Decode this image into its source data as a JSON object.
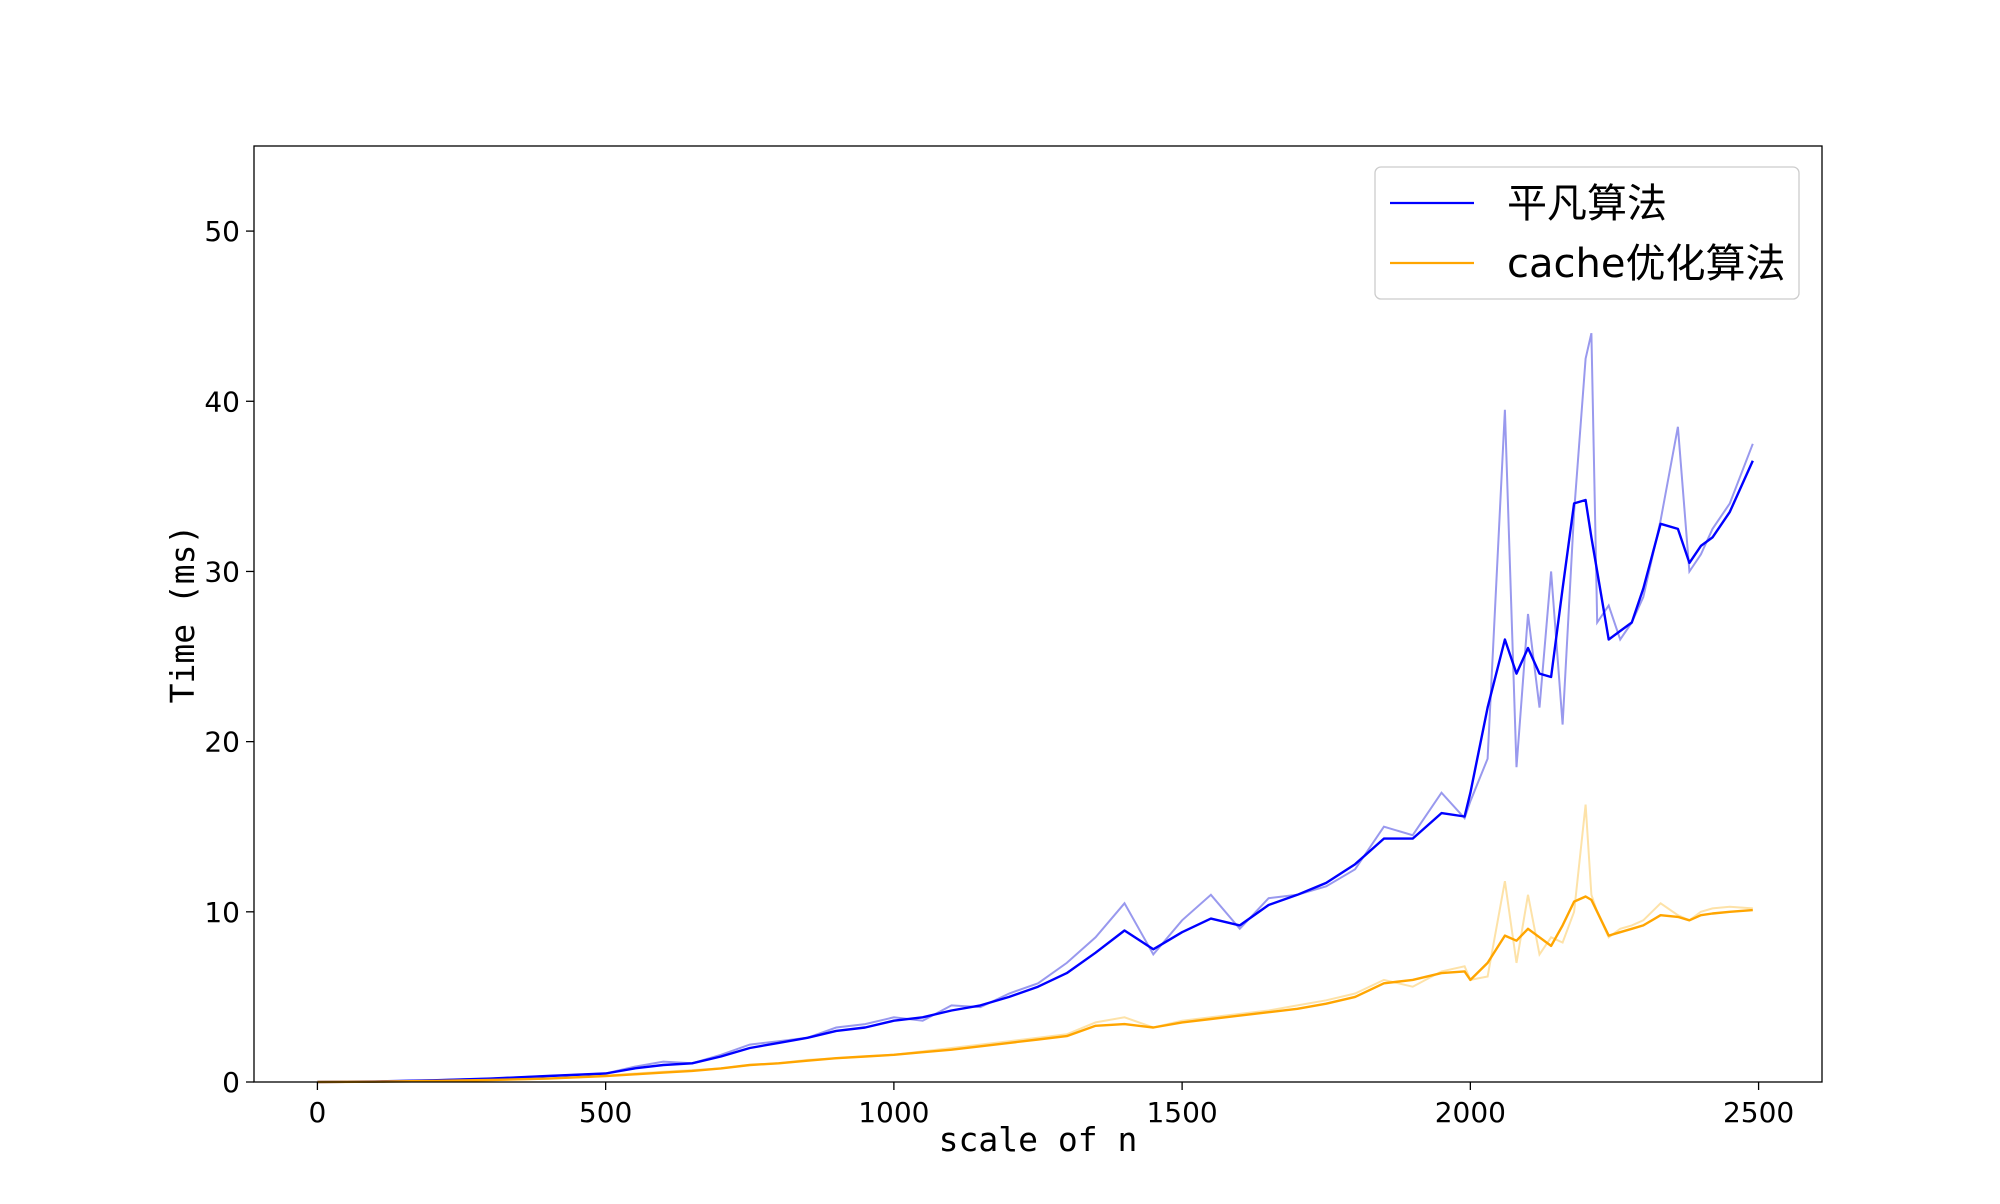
{
  "chart_data": {
    "type": "line",
    "xlabel": "scale of n",
    "ylabel": "Time (ms)",
    "xlim": [
      -110,
      2610
    ],
    "ylim": [
      0,
      55
    ],
    "xticks": [
      0,
      500,
      1000,
      1500,
      2000,
      2500
    ],
    "yticks": [
      0,
      10,
      20,
      30,
      40,
      50
    ],
    "grid": false,
    "legend_position": "top-right",
    "x": [
      0,
      100,
      200,
      300,
      400,
      500,
      550,
      600,
      650,
      700,
      750,
      800,
      850,
      900,
      950,
      1000,
      1050,
      1100,
      1150,
      1200,
      1250,
      1300,
      1350,
      1400,
      1450,
      1500,
      1550,
      1600,
      1650,
      1700,
      1750,
      1800,
      1850,
      1900,
      1950,
      1990,
      2000,
      2030,
      2060,
      2080,
      2100,
      2120,
      2140,
      2160,
      2180,
      2200,
      2210,
      2220,
      2240,
      2260,
      2280,
      2300,
      2330,
      2360,
      2380,
      2400,
      2420,
      2450,
      2490
    ],
    "series": [
      {
        "name": "平凡算法",
        "color": "#0000ff",
        "raw_color": "#9999ee",
        "smoothed": [
          0,
          0.03,
          0.1,
          0.2,
          0.35,
          0.5,
          0.8,
          1.0,
          1.1,
          1.5,
          2.0,
          2.3,
          2.6,
          3.0,
          3.2,
          3.6,
          3.8,
          4.2,
          4.5,
          5.0,
          5.6,
          6.4,
          7.6,
          8.9,
          7.8,
          8.8,
          9.6,
          9.2,
          10.4,
          11.0,
          11.7,
          12.8,
          14.3,
          14.3,
          15.8,
          15.6,
          17.0,
          22.0,
          26.0,
          24.0,
          25.5,
          24.0,
          23.8,
          29.0,
          34.0,
          34.2,
          32.0,
          30.0,
          26.0,
          26.5,
          27.0,
          29.0,
          32.8,
          32.5,
          30.5,
          31.5,
          32.0,
          33.5,
          36.5
        ],
        "raw": [
          0,
          0.03,
          0.1,
          0.2,
          0.35,
          0.5,
          0.9,
          1.2,
          1.1,
          1.6,
          2.2,
          2.4,
          2.6,
          3.2,
          3.4,
          3.8,
          3.6,
          4.5,
          4.4,
          5.2,
          5.8,
          7.0,
          8.5,
          10.5,
          7.5,
          9.5,
          11.0,
          9.0,
          10.8,
          11.0,
          11.5,
          12.5,
          15.0,
          14.5,
          17.0,
          15.5,
          16.5,
          19.0,
          39.5,
          18.5,
          27.5,
          22.0,
          30.0,
          21.0,
          33.5,
          42.5,
          44.0,
          27.0,
          28.0,
          26.0,
          27.0,
          28.5,
          33.0,
          38.5,
          30.0,
          31.0,
          32.5,
          34.0,
          37.5
        ]
      },
      {
        "name": "cache优化算法",
        "color": "#ffa500",
        "raw_color": "#fde2a8",
        "smoothed": [
          0,
          0.02,
          0.06,
          0.12,
          0.2,
          0.35,
          0.45,
          0.55,
          0.65,
          0.8,
          1.0,
          1.1,
          1.25,
          1.4,
          1.5,
          1.6,
          1.75,
          1.9,
          2.1,
          2.3,
          2.5,
          2.7,
          3.3,
          3.4,
          3.2,
          3.5,
          3.7,
          3.9,
          4.1,
          4.3,
          4.6,
          5.0,
          5.8,
          6.0,
          6.4,
          6.5,
          6.0,
          7.0,
          8.6,
          8.3,
          9.0,
          8.5,
          8.0,
          9.2,
          10.6,
          10.9,
          10.7,
          10.0,
          8.6,
          8.8,
          9.0,
          9.2,
          9.8,
          9.7,
          9.5,
          9.8,
          9.9,
          10.0,
          10.1
        ],
        "raw": [
          0,
          0.02,
          0.06,
          0.12,
          0.2,
          0.35,
          0.5,
          0.6,
          0.7,
          0.8,
          1.0,
          1.1,
          1.3,
          1.4,
          1.5,
          1.6,
          1.8,
          2.0,
          2.2,
          2.4,
          2.6,
          2.8,
          3.5,
          3.8,
          3.2,
          3.6,
          3.8,
          4.0,
          4.2,
          4.5,
          4.8,
          5.2,
          6.0,
          5.6,
          6.5,
          6.8,
          6.0,
          6.2,
          11.8,
          7.0,
          11.0,
          7.5,
          8.5,
          8.2,
          10.0,
          16.3,
          11.0,
          10.0,
          8.5,
          9.0,
          9.2,
          9.5,
          10.5,
          9.8,
          9.5,
          10.0,
          10.2,
          10.3,
          10.2
        ]
      }
    ]
  }
}
